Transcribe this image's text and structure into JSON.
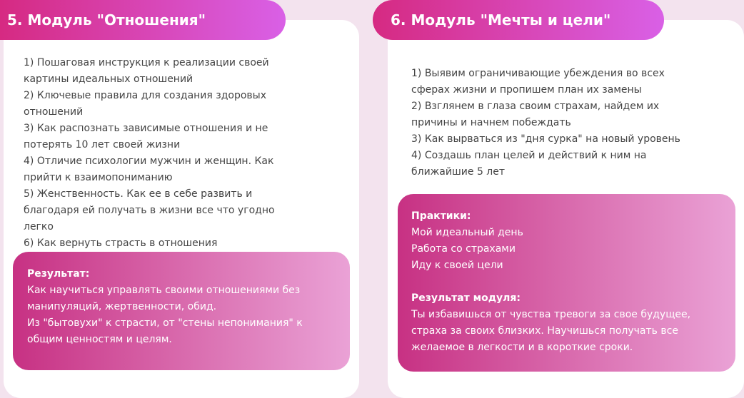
{
  "modules": [
    {
      "title": "5. Модуль \"Отношения\"",
      "items": [
        "1) Пошаговая инструкция к реализации своей картины идеальных отношений",
        "2) Ключевые правила для создания здоровых отношений",
        "3) Как распознать зависимые отношения и не потерять 10 лет своей жизни",
        "4) Отличие психологии мужчин и женщин. Как прийти к взаимопониманию",
        "5) Женственность. Как ее в себе развить и благодаря ей получать в жизни все что угодно легко",
        "6) Как вернуть страсть в отношения"
      ],
      "result": {
        "label": "Результат:",
        "lines": [
          "Как научиться управлять своими отношениями без манипуляций, жертвенности, обид.",
          "Из \"бытовухи\" к страсти, от \"стены непонимания\" к общим ценностям и целям."
        ]
      }
    },
    {
      "title": "6. Модуль \"Мечты и цели\"",
      "items": [
        "1) Выявим ограничивающие убеждения во всех сферах жизни и пропишем план их замены",
        "2) Взглянем в глаза своим страхам, найдем их причины и начнем побеждать",
        "3) Как вырваться из \"дня сурка\" на новый уровень",
        "4) Создашь план целей и действий к ним на ближайшие 5 лет"
      ],
      "practices": {
        "label": "Практики:",
        "lines": [
          "Мой идеальный день",
          "Работа со страхами",
          "Иду к своей цели"
        ]
      },
      "result": {
        "label": "Результат модуля:",
        "lines": [
          "Ты избавишься от чувства тревоги за свое будущее, страха за своих близких. Научишься получать все желаемое в легкости и в короткие сроки."
        ]
      }
    }
  ]
}
